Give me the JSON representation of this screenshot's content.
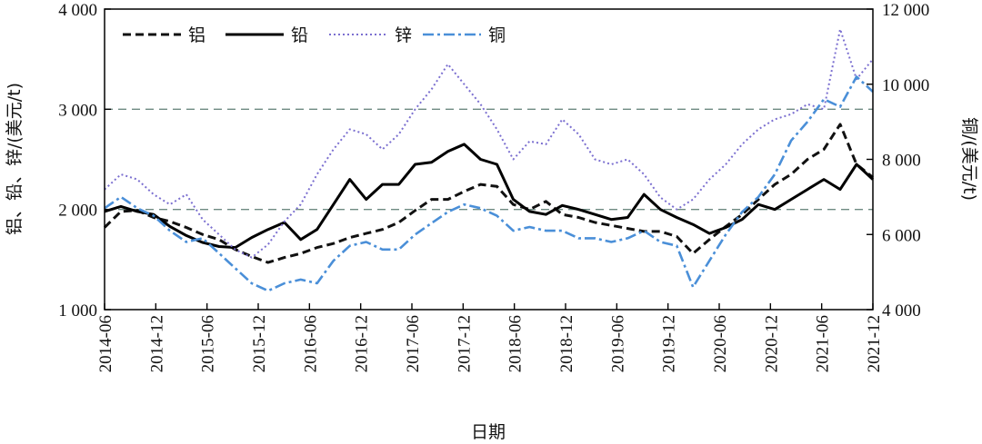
{
  "chart_data": {
    "type": "line",
    "title": "",
    "xlabel": "日期",
    "ylabel_left": "铝、铅、锌/(美元/t)",
    "ylabel_right": "铜/(美元/t)",
    "x_tick_labels": [
      "2014-06",
      "2014-12",
      "2015-06",
      "2015-12",
      "2016-06",
      "2016-12",
      "2017-06",
      "2017-12",
      "2018-06",
      "2018-12",
      "2019-06",
      "2019-12",
      "2020-06",
      "2020-12",
      "2021-06",
      "2021-12"
    ],
    "ylim_left": [
      1000,
      4000
    ],
    "ylim_right": [
      4000,
      12000
    ],
    "y_ticks_left": [
      1000,
      2000,
      3000,
      4000
    ],
    "y_tick_labels_left": [
      "1 000",
      "2 000",
      "3 000",
      "4 000"
    ],
    "y_ticks_right": [
      4000,
      6000,
      8000,
      10000,
      12000
    ],
    "y_tick_labels_right": [
      "4 000",
      "6 000",
      "8 000",
      "10 000",
      "12 000"
    ],
    "reference_lines_left": [
      2000,
      3000
    ],
    "legend_position": "top-left",
    "series": [
      {
        "name": "铝",
        "axis": "left",
        "color": "#111111",
        "style": "dashed",
        "values": [
          1820,
          1980,
          1990,
          1920,
          1880,
          1820,
          1750,
          1700,
          1600,
          1530,
          1470,
          1520,
          1560,
          1620,
          1660,
          1720,
          1760,
          1800,
          1870,
          1990,
          2100,
          2100,
          2180,
          2250,
          2230,
          2050,
          2000,
          2080,
          1950,
          1920,
          1870,
          1840,
          1810,
          1780,
          1780,
          1730,
          1560,
          1700,
          1830,
          1950,
          2100,
          2250,
          2350,
          2500,
          2600,
          2850,
          2450,
          2320
        ]
      },
      {
        "name": "铅",
        "axis": "left",
        "color": "#000000",
        "style": "solid",
        "values": [
          1980,
          2030,
          1980,
          1950,
          1830,
          1740,
          1670,
          1630,
          1620,
          1720,
          1800,
          1870,
          1700,
          1800,
          2050,
          2300,
          2100,
          2250,
          2250,
          2450,
          2470,
          2580,
          2650,
          2500,
          2450,
          2100,
          1980,
          1950,
          2040,
          2000,
          1950,
          1900,
          1920,
          2150,
          2000,
          1920,
          1850,
          1760,
          1820,
          1900,
          2050,
          2000,
          2100,
          2200,
          2300,
          2200,
          2450,
          2300
        ]
      },
      {
        "name": "锌",
        "axis": "left",
        "color": "#7b6fd0",
        "style": "dotted",
        "values": [
          2200,
          2350,
          2300,
          2150,
          2050,
          2150,
          1900,
          1750,
          1600,
          1520,
          1650,
          1880,
          2050,
          2350,
          2600,
          2800,
          2750,
          2600,
          2750,
          3000,
          3200,
          3450,
          3250,
          3050,
          2800,
          2500,
          2680,
          2650,
          2900,
          2750,
          2500,
          2450,
          2500,
          2350,
          2120,
          2000,
          2100,
          2300,
          2450,
          2650,
          2800,
          2900,
          2950,
          3050,
          3000,
          3800,
          3300,
          3500
        ]
      },
      {
        "name": "铜",
        "axis": "right",
        "color": "#4a8fd8",
        "style": "dashdot",
        "values": [
          6700,
          7000,
          6700,
          6500,
          6100,
          5800,
          5900,
          5500,
          5100,
          4700,
          4500,
          4700,
          4800,
          4700,
          5300,
          5700,
          5800,
          5600,
          5600,
          6000,
          6300,
          6600,
          6800,
          6700,
          6500,
          6100,
          6200,
          6100,
          6100,
          5900,
          5900,
          5800,
          5900,
          6100,
          5800,
          5700,
          4600,
          5300,
          6000,
          6600,
          7000,
          7600,
          8500,
          9000,
          9600,
          9400,
          10200,
          9800
        ]
      }
    ]
  }
}
